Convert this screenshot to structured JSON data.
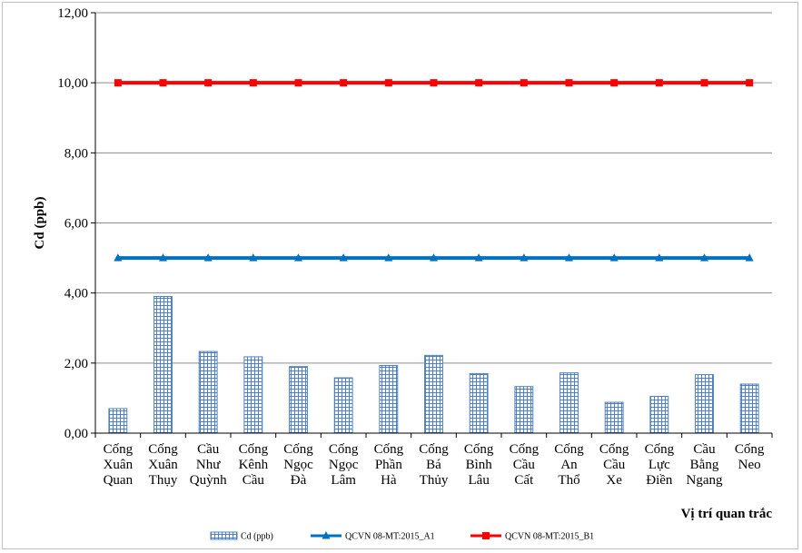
{
  "chart_data": {
    "type": "bar",
    "categories": [
      [
        "Cống",
        "Xuân",
        "Quan"
      ],
      [
        "Cống",
        "Xuân",
        "Thụy"
      ],
      [
        "Cầu",
        "Như",
        "Quỳnh"
      ],
      [
        "Cống",
        "Kênh",
        "Cầu"
      ],
      [
        "Cống",
        "Ngọc",
        "Đà"
      ],
      [
        "Cống",
        "Ngọc",
        "Lâm"
      ],
      [
        "Cống",
        "Phần",
        "Hà"
      ],
      [
        "Cống",
        "Bá",
        "Thủy"
      ],
      [
        "Cống",
        "Bình",
        "Lâu"
      ],
      [
        "Cống",
        "Cầu",
        "Cất"
      ],
      [
        "Cống",
        "An",
        "Thổ"
      ],
      [
        "Cống",
        "Cầu",
        "Xe"
      ],
      [
        "Cống",
        "Lực",
        "Điền"
      ],
      [
        "Cầu",
        "Bằng",
        "Ngang"
      ],
      [
        "Cống",
        "Neo"
      ]
    ],
    "series": [
      {
        "name": "Cd (ppb)",
        "kind": "bar",
        "color": "#4f81bd",
        "values": [
          0.7,
          3.9,
          2.33,
          2.18,
          1.9,
          1.58,
          1.93,
          2.22,
          1.7,
          1.33,
          1.72,
          0.88,
          1.05,
          1.67,
          1.4
        ]
      },
      {
        "name": "QCVN 08-MT:2015_A1",
        "kind": "line",
        "marker": "triangle",
        "color": "#0070c0",
        "values": [
          5,
          5,
          5,
          5,
          5,
          5,
          5,
          5,
          5,
          5,
          5,
          5,
          5,
          5,
          5
        ]
      },
      {
        "name": "QCVN 08-MT:2015_B1",
        "kind": "line",
        "marker": "square",
        "color": "#ff0000",
        "values": [
          10,
          10,
          10,
          10,
          10,
          10,
          10,
          10,
          10,
          10,
          10,
          10,
          10,
          10,
          10
        ]
      }
    ],
    "ylabel": "Cd (ppb)",
    "xlabel": "Vị trí quan trắc",
    "ylim": [
      0,
      12
    ],
    "yticks": [
      "0,00",
      "2,00",
      "4,00",
      "6,00",
      "8,00",
      "10,00",
      "12,00"
    ],
    "grid": true,
    "legend": "bottom"
  }
}
